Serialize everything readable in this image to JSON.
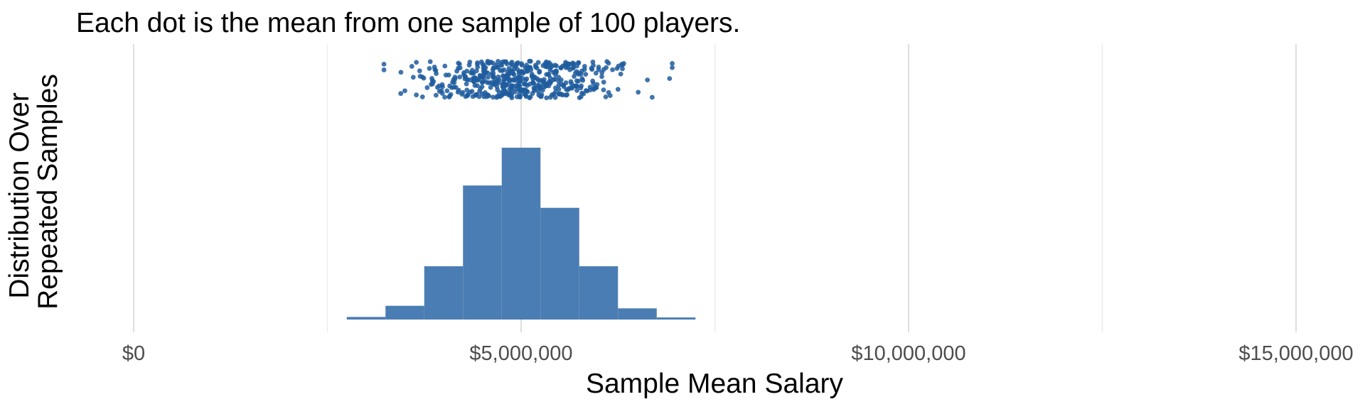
{
  "chart_data": {
    "type": "histogram",
    "title": "",
    "subtitle": "Each dot is the mean from one sample of 100 players.",
    "xlabel": "Sample Mean Salary",
    "ylabel": [
      "Distribution Over",
      "Repeated Samples"
    ],
    "xlim": [
      -700000,
      15900000
    ],
    "x_ticks": [
      {
        "value": 0,
        "label": "$0"
      },
      {
        "value": 5000000,
        "label": "$5,000,000"
      },
      {
        "value": 10000000,
        "label": "$10,000,000"
      },
      {
        "value": 15000000,
        "label": "$15,000,000"
      }
    ],
    "x_minor_ticks": [
      2500000,
      7500000,
      12500000
    ],
    "grid": "vertical",
    "bins": [
      {
        "start": 2750000,
        "end": 3250000,
        "height": 0.015
      },
      {
        "start": 3250000,
        "end": 3750000,
        "height": 0.08
      },
      {
        "start": 3750000,
        "end": 4250000,
        "height": 0.31
      },
      {
        "start": 4250000,
        "end": 4750000,
        "height": 0.78
      },
      {
        "start": 4750000,
        "end": 5250000,
        "height": 1.0
      },
      {
        "start": 5250000,
        "end": 5750000,
        "height": 0.65
      },
      {
        "start": 5750000,
        "end": 6250000,
        "height": 0.31
      },
      {
        "start": 6250000,
        "end": 6750000,
        "height": 0.065
      },
      {
        "start": 6750000,
        "end": 7250000,
        "height": 0.012
      }
    ],
    "points": {
      "description_count": 500,
      "mean": 5000000,
      "sd": 640000,
      "min": 3230000,
      "max": 6950000
    },
    "colors": {
      "bar": "#4a7db3",
      "point": "#1f5c9e"
    }
  }
}
